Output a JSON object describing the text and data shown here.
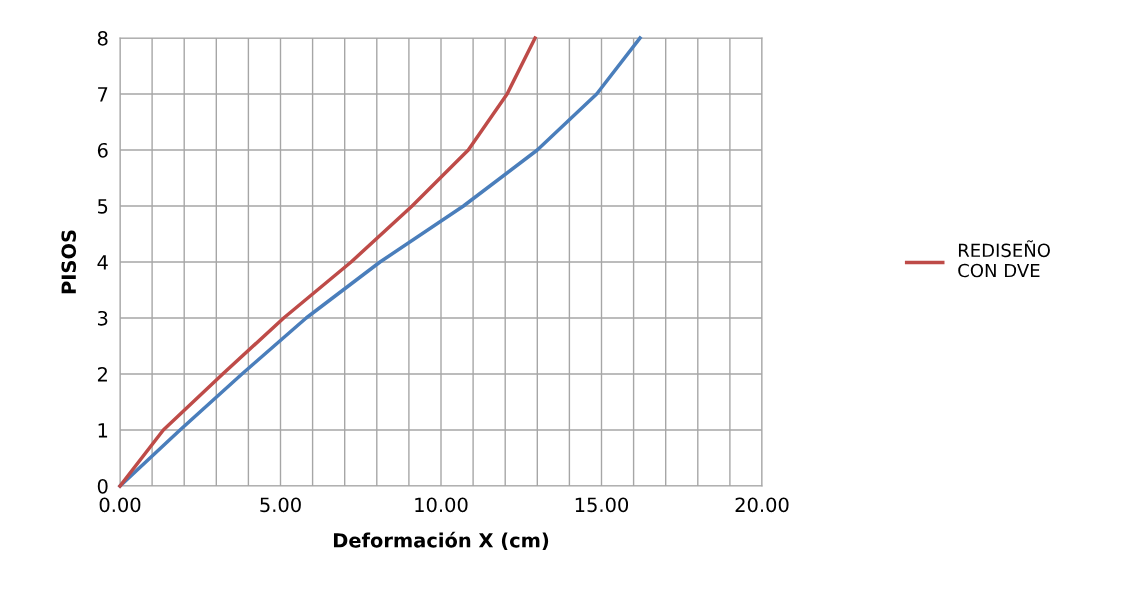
{
  "chart_data": {
    "type": "line",
    "xlabel": "Deformación X (cm)",
    "ylabel": "PISOS",
    "series": [
      {
        "color": "#4a7ebb",
        "x": [
          0,
          1.87,
          3.8,
          5.8,
          8.1,
          10.7,
          13.0,
          14.85,
          16.2
        ],
        "values": [
          0,
          1,
          2,
          3,
          4,
          5,
          6,
          7,
          8
        ]
      },
      {
        "name": "REDISEÑO\nCON DVE",
        "color": "#be4b48",
        "x": [
          0,
          1.35,
          3.2,
          5.1,
          7.2,
          9.1,
          10.85,
          12.06,
          12.93
        ],
        "values": [
          0,
          1,
          2,
          3,
          4,
          5,
          6,
          7,
          8
        ]
      }
    ],
    "xlim": [
      0,
      20
    ],
    "ylim": [
      0,
      8
    ],
    "xticks": [
      {
        "value": 0,
        "label": "0.00"
      },
      {
        "value": 1,
        "label": null
      },
      {
        "value": 2,
        "label": null
      },
      {
        "value": 3,
        "label": null
      },
      {
        "value": 4,
        "label": null
      },
      {
        "value": 5,
        "label": "5.00"
      },
      {
        "value": 6,
        "label": null
      },
      {
        "value": 7,
        "label": null
      },
      {
        "value": 8,
        "label": null
      },
      {
        "value": 9,
        "label": null
      },
      {
        "value": 10,
        "label": "10.00"
      },
      {
        "value": 11,
        "label": null
      },
      {
        "value": 12,
        "label": null
      },
      {
        "value": 13,
        "label": null
      },
      {
        "value": 14,
        "label": null
      },
      {
        "value": 15,
        "label": "15.00"
      },
      {
        "value": 16,
        "label": null
      },
      {
        "value": 17,
        "label": null
      },
      {
        "value": 18,
        "label": null
      },
      {
        "value": 19,
        "label": null
      },
      {
        "value": 20,
        "label": "20.00"
      }
    ],
    "yticks": [
      0,
      1,
      2,
      3,
      4,
      5,
      6,
      7,
      8
    ],
    "grid": true,
    "legend": "right",
    "marker": "none",
    "line_style": "solid"
  }
}
